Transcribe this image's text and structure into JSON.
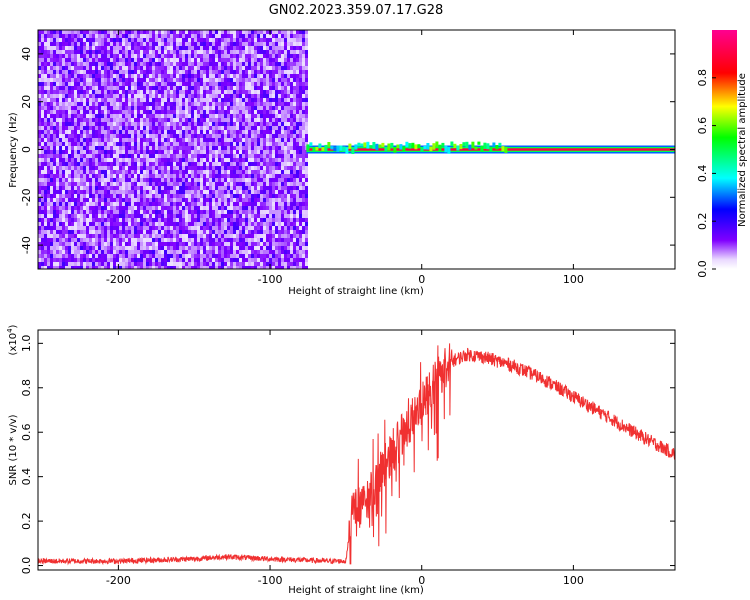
{
  "figure": {
    "title": "GN02.2023.359.07.17.G28"
  },
  "chart_data": [
    {
      "type": "heatmap",
      "xlabel": "Height of straight line (km)",
      "ylabel": "Frequency (Hz)",
      "xlim": [
        -253,
        167
      ],
      "ylim": [
        -50,
        50
      ],
      "xticks": [
        -200,
        -100,
        0,
        100
      ],
      "yticks": [
        -40,
        -20,
        0,
        20,
        40
      ],
      "noise_region": {
        "x": [
          -253,
          -76
        ],
        "y": [
          -50,
          50
        ],
        "amplitude": [
          0.0,
          0.35
        ]
      },
      "signal_track": {
        "x_start": -76,
        "x_end": 167,
        "frequency": 0,
        "amplitude": 0.9
      },
      "colorbar": {
        "label": "Normalized spectral amplitude",
        "ticks": [
          0.0,
          0.2,
          0.4,
          0.6,
          0.8
        ],
        "range": [
          0,
          1
        ],
        "colormap": [
          "#ffffff",
          "#8000ff",
          "#0000ff",
          "#00ffff",
          "#00ff00",
          "#ffff00",
          "#ff0000",
          "#ff0080"
        ]
      }
    },
    {
      "type": "line",
      "xlabel": "Height of straight line (km)",
      "ylabel": "SNR (10 * v/v)",
      "yscale_note": "(x10",
      "yscale_exp": "4",
      "xlim": [
        -253,
        167
      ],
      "ylim": [
        -0.02,
        1.06
      ],
      "xticks": [
        -200,
        -100,
        0,
        100
      ],
      "yticks": [
        0.0,
        0.2,
        0.4,
        0.6,
        0.8,
        1.0
      ],
      "color": "#f03030",
      "series": [
        {
          "x": [
            -253,
            -200,
            -150,
            -130,
            -100,
            -60,
            -50,
            -45,
            -40,
            -30,
            -20,
            -10,
            0,
            10,
            20,
            30,
            40,
            50,
            60,
            80,
            100,
            120,
            140,
            167
          ],
          "values": [
            0.02,
            0.02,
            0.03,
            0.04,
            0.03,
            0.02,
            0.02,
            0.28,
            0.25,
            0.38,
            0.5,
            0.62,
            0.72,
            0.85,
            0.92,
            0.95,
            0.94,
            0.92,
            0.9,
            0.84,
            0.76,
            0.68,
            0.6,
            0.5
          ]
        }
      ]
    }
  ]
}
